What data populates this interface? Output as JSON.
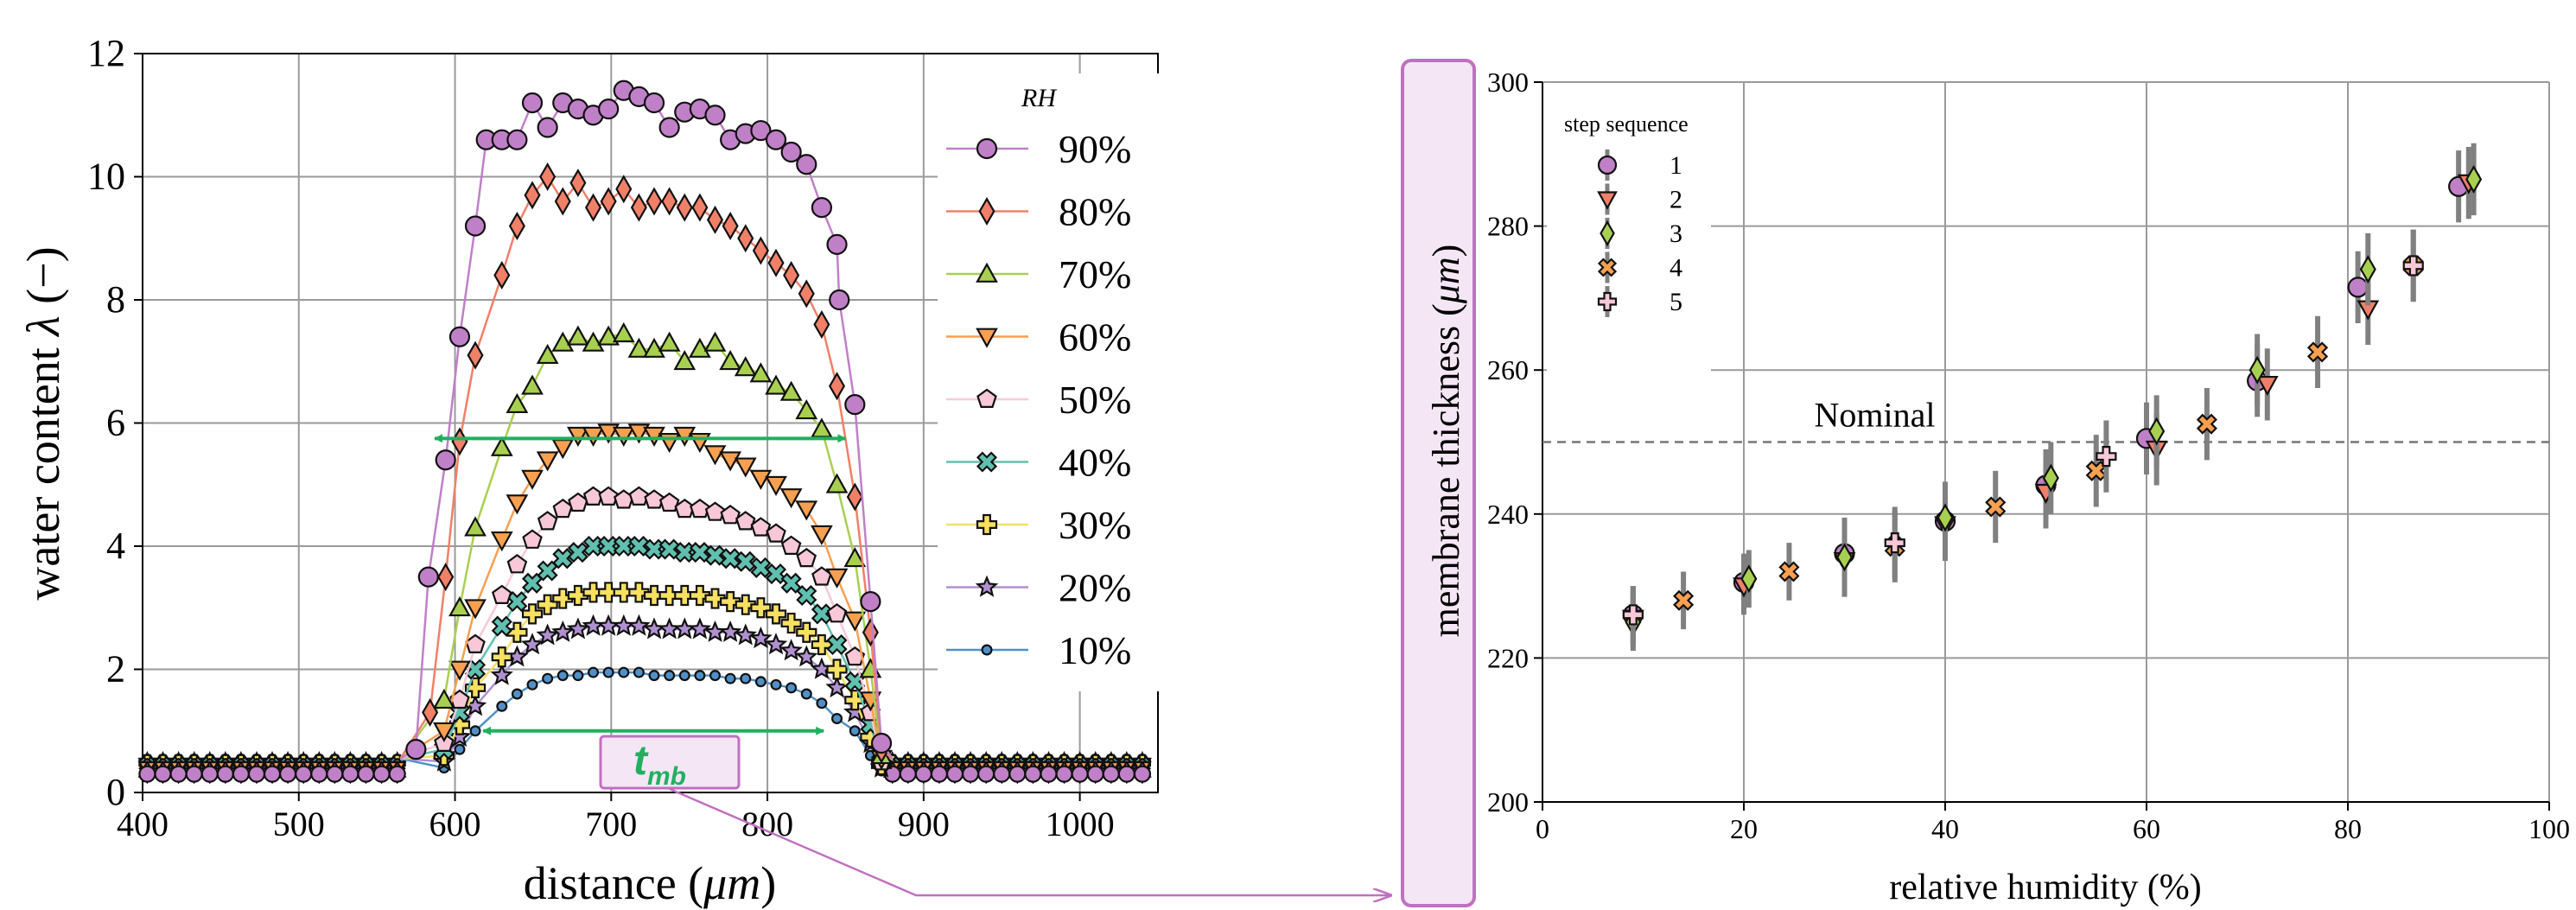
{
  "figure": {
    "tmb_label_main": "t",
    "tmb_label_sub": "mb"
  },
  "chart_data": [
    {
      "type": "line",
      "xlabel_main": "distance (",
      "xlabel_unit": "μm",
      "xlabel_close": ")",
      "ylabel_main": "water content ",
      "ylabel_sym": "λ",
      "ylabel_close": " (−)",
      "xlim": [
        400,
        1050
      ],
      "ylim": [
        0,
        12
      ],
      "xticks": [
        400,
        500,
        600,
        700,
        800,
        900,
        1000
      ],
      "yticks": [
        0,
        2,
        4,
        6,
        8,
        10,
        12
      ],
      "grid": true,
      "legend_title": "RH",
      "legend_placement": "right",
      "colors": {
        "90%": "#c080c8",
        "80%": "#f08068",
        "70%": "#a8d050",
        "60%": "#f8a050",
        "50%": "#f8c8d8",
        "40%": "#60c0b0",
        "30%": "#f8e060",
        "20%": "#b090d0",
        "10%": "#5090c8"
      },
      "arrow_color": "#20b060",
      "series": [
        {
          "name": "90%",
          "marker": "circle",
          "plateau": [
            10.6,
            10.6,
            11.2,
            10.8,
            11.2,
            11.1,
            11.0,
            11.1,
            11.4,
            11.3,
            11.2,
            10.8,
            11.05,
            11.1,
            11.0,
            10.6,
            10.7,
            10.75,
            10.6,
            10.4,
            10.2,
            9.5,
            8.9
          ],
          "rise": [
            [
              575,
              0.7
            ],
            [
              583,
              3.5
            ],
            [
              594,
              5.4
            ],
            [
              603,
              7.4
            ],
            [
              613,
              9.2
            ],
            [
              620,
              10.6
            ]
          ],
          "fall": [
            [
              846,
              8.0
            ],
            [
              856,
              6.3
            ],
            [
              866,
              3.1
            ],
            [
              873,
              0.8
            ]
          ]
        },
        {
          "name": "80%",
          "marker": "diamond",
          "plateau": [
            8.4,
            9.2,
            9.7,
            10.0,
            9.6,
            9.9,
            9.5,
            9.6,
            9.8,
            9.5,
            9.6,
            9.6,
            9.5,
            9.5,
            9.3,
            9.2,
            9.0,
            8.8,
            8.6,
            8.4,
            8.1,
            7.6,
            6.6
          ],
          "rise": [
            [
              584,
              1.3
            ],
            [
              594,
              3.5
            ],
            [
              603,
              5.7
            ],
            [
              613,
              7.1
            ]
          ],
          "fall": [
            [
              856,
              4.8
            ],
            [
              866,
              2.6
            ],
            [
              873,
              0.7
            ]
          ]
        },
        {
          "name": "70%",
          "marker": "triangle-up",
          "plateau": [
            5.6,
            6.3,
            6.6,
            7.1,
            7.3,
            7.4,
            7.3,
            7.4,
            7.45,
            7.2,
            7.2,
            7.3,
            7.0,
            7.2,
            7.3,
            7.0,
            6.9,
            6.8,
            6.6,
            6.5,
            6.2,
            5.9,
            5.0
          ],
          "rise": [
            [
              593,
              1.5
            ],
            [
              603,
              3.0
            ],
            [
              613,
              4.3
            ]
          ],
          "fall": [
            [
              856,
              3.8
            ],
            [
              866,
              2.0
            ],
            [
              873,
              0.6
            ]
          ]
        },
        {
          "name": "60%",
          "marker": "triangle-down",
          "plateau": [
            4.1,
            4.7,
            5.1,
            5.4,
            5.6,
            5.8,
            5.8,
            5.85,
            5.8,
            5.85,
            5.8,
            5.7,
            5.8,
            5.7,
            5.5,
            5.4,
            5.3,
            5.1,
            5.0,
            4.8,
            4.6,
            4.2,
            3.5
          ],
          "rise": [
            [
              593,
              1.0
            ],
            [
              603,
              2.0
            ],
            [
              613,
              3.0
            ]
          ],
          "fall": [
            [
              856,
              2.8
            ],
            [
              866,
              1.5
            ],
            [
              873,
              0.55
            ]
          ]
        },
        {
          "name": "50%",
          "marker": "pentagon",
          "plateau": [
            3.2,
            3.7,
            4.1,
            4.4,
            4.6,
            4.7,
            4.8,
            4.8,
            4.75,
            4.8,
            4.75,
            4.7,
            4.6,
            4.6,
            4.55,
            4.5,
            4.4,
            4.3,
            4.2,
            4.0,
            3.8,
            3.5,
            2.9
          ],
          "rise": [
            [
              593,
              0.8
            ],
            [
              603,
              1.5
            ],
            [
              613,
              2.4
            ]
          ],
          "fall": [
            [
              856,
              2.2
            ],
            [
              866,
              1.3
            ],
            [
              873,
              0.5
            ]
          ]
        },
        {
          "name": "40%",
          "marker": "x",
          "plateau": [
            2.7,
            3.1,
            3.4,
            3.6,
            3.8,
            3.9,
            4.0,
            4.0,
            4.0,
            4.0,
            3.95,
            3.95,
            3.9,
            3.9,
            3.85,
            3.8,
            3.75,
            3.65,
            3.55,
            3.4,
            3.2,
            2.9,
            2.4
          ],
          "rise": [
            [
              593,
              0.7
            ],
            [
              603,
              1.3
            ],
            [
              613,
              2.0
            ]
          ],
          "fall": [
            [
              856,
              1.8
            ],
            [
              866,
              1.1
            ],
            [
              873,
              0.5
            ]
          ]
        },
        {
          "name": "30%",
          "marker": "plus",
          "plateau": [
            2.2,
            2.6,
            2.9,
            3.05,
            3.15,
            3.2,
            3.25,
            3.25,
            3.25,
            3.25,
            3.2,
            3.2,
            3.2,
            3.2,
            3.15,
            3.1,
            3.05,
            3.0,
            2.9,
            2.75,
            2.6,
            2.4,
            2.0
          ],
          "rise": [
            [
              593,
              0.6
            ],
            [
              603,
              1.1
            ],
            [
              613,
              1.7
            ]
          ],
          "fall": [
            [
              856,
              1.5
            ],
            [
              866,
              0.9
            ],
            [
              873,
              0.45
            ]
          ]
        },
        {
          "name": "20%",
          "marker": "star",
          "plateau": [
            1.9,
            2.2,
            2.4,
            2.55,
            2.6,
            2.65,
            2.7,
            2.7,
            2.7,
            2.7,
            2.65,
            2.65,
            2.65,
            2.65,
            2.6,
            2.6,
            2.55,
            2.5,
            2.4,
            2.3,
            2.2,
            2.0,
            1.7
          ],
          "rise": [
            [
              593,
              0.5
            ],
            [
              603,
              0.9
            ],
            [
              613,
              1.4
            ]
          ],
          "fall": [
            [
              856,
              1.3
            ],
            [
              866,
              0.8
            ],
            [
              873,
              0.4
            ]
          ]
        },
        {
          "name": "10%",
          "marker": "small-circle",
          "plateau": [
            1.4,
            1.6,
            1.75,
            1.85,
            1.9,
            1.9,
            1.95,
            1.95,
            1.95,
            1.95,
            1.9,
            1.9,
            1.9,
            1.9,
            1.9,
            1.85,
            1.85,
            1.8,
            1.75,
            1.7,
            1.6,
            1.45,
            1.2
          ],
          "rise": [
            [
              593,
              0.4
            ],
            [
              603,
              0.7
            ],
            [
              613,
              1.0
            ]
          ],
          "fall": [
            [
              856,
              1.0
            ],
            [
              866,
              0.6
            ],
            [
              873,
              0.35
            ]
          ]
        }
      ],
      "baseline_left": {
        "x_start": 403,
        "x_end": 565,
        "step": 10
      },
      "baseline_right": {
        "x_start": 880,
        "x_end": 1045,
        "step": 10
      },
      "baseline_base": 0.3,
      "baseline_step": 0.03,
      "plateau_start": 630,
      "plateau_step": 9.75,
      "annotations": [
        {
          "type": "double-arrow",
          "x1": 587,
          "x2": 850,
          "y": 5.75
        },
        {
          "type": "double-arrow",
          "x1": 618,
          "x2": 836,
          "y": 1.0
        }
      ]
    },
    {
      "type": "scatter",
      "xlabel": "relative humidity (%)",
      "ylabel_main": "membrane thickness (",
      "ylabel_unit": "μm",
      "ylabel_close": ")",
      "xlim": [
        0,
        100
      ],
      "ylim": [
        200,
        300
      ],
      "xticks": [
        0,
        20,
        40,
        60,
        80,
        100
      ],
      "yticks": [
        200,
        220,
        240,
        260,
        280,
        300
      ],
      "grid": true,
      "legend_title": "step sequence",
      "legend_placement": "top-left",
      "nominal_line": {
        "y": 250,
        "label": "Nominal"
      },
      "series": [
        {
          "name": "1",
          "marker": "circle",
          "color": "#c080c8",
          "points": [
            [
              9,
              226,
              4
            ],
            [
              20,
              230.5,
              4
            ],
            [
              30,
              234.5,
              5
            ],
            [
              40,
              239,
              5
            ],
            [
              50,
              244,
              5
            ],
            [
              60,
              250.5,
              5
            ],
            [
              71,
              258.5,
              5
            ],
            [
              81,
              271.5,
              5
            ],
            [
              91,
              285.5,
              5
            ]
          ]
        },
        {
          "name": "2",
          "marker": "triangle-down",
          "color": "#f08068",
          "points": [
            [
              9,
              225.5,
              4
            ],
            [
              20,
              230,
              4
            ],
            [
              30,
              233.5,
              5
            ],
            [
              40,
              238.5,
              5
            ],
            [
              50,
              243,
              5
            ],
            [
              61,
              249,
              5
            ],
            [
              72,
              258,
              5
            ],
            [
              82,
              268.5,
              5
            ],
            [
              92,
              286,
              5
            ]
          ]
        },
        {
          "name": "3",
          "marker": "diamond",
          "color": "#a8d050",
          "points": [
            [
              9,
              225,
              4
            ],
            [
              20.5,
              231,
              4
            ],
            [
              30,
              234,
              5
            ],
            [
              40,
              239.5,
              5
            ],
            [
              50.5,
              245,
              5
            ],
            [
              61,
              251.5,
              5
            ],
            [
              71,
              260,
              5
            ],
            [
              82,
              274,
              5
            ],
            [
              92.5,
              286.5,
              5
            ]
          ]
        },
        {
          "name": "4",
          "marker": "x",
          "color": "#f8a050",
          "points": [
            [
              14,
              228,
              4
            ],
            [
              24.5,
              232,
              4
            ],
            [
              35,
              235.5,
              5
            ],
            [
              45,
              241,
              5
            ],
            [
              55,
              246,
              5
            ],
            [
              66,
              252.5,
              5
            ],
            [
              77,
              262.5,
              5
            ],
            [
              86.5,
              274.5,
              5
            ]
          ]
        },
        {
          "name": "5",
          "marker": "plus",
          "color": "#f8c8d8",
          "points": [
            [
              9,
              226,
              4
            ],
            [
              35,
              236,
              5
            ],
            [
              56,
              248,
              5
            ],
            [
              86.5,
              274.5,
              5
            ]
          ]
        }
      ]
    }
  ]
}
